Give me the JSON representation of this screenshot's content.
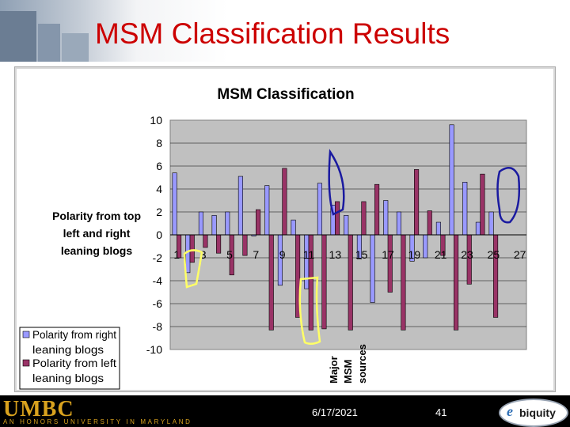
{
  "slide": {
    "title": "MSM Classification Results",
    "date": "6/17/2021",
    "page_number": "41",
    "logo_umbc": "UMBC",
    "logo_umbc_sub": "AN HONORS UNIVERSITY IN MARYLAND",
    "logo_right_mark": "e",
    "logo_right_text": "biquity"
  },
  "chart_data": {
    "type": "bar",
    "title": "MSM Classification",
    "ylabel": "Polarity from top left and right leaning blogs",
    "ylabel_lines": [
      "Polarity from top",
      "left and right",
      "leaning blogs"
    ],
    "xlabel": "",
    "ylim": [
      -10,
      10
    ],
    "yticks": [
      10,
      8,
      6,
      4,
      2,
      0,
      -2,
      -4,
      -6,
      -8,
      -10
    ],
    "xtick_labels": [
      "1",
      "3",
      "5",
      "7",
      "9",
      "11",
      "13",
      "15",
      "17",
      "19",
      "21",
      "23",
      "25",
      "27"
    ],
    "categories": [
      "1",
      "2",
      "3",
      "4",
      "5",
      "6",
      "7",
      "8",
      "9",
      "10",
      "11",
      "12",
      "13",
      "14",
      "15",
      "16",
      "17",
      "18",
      "19",
      "20",
      "21",
      "22",
      "23",
      "24",
      "25",
      "26",
      "27"
    ],
    "series": [
      {
        "name": "Polarity from right leaning blogs",
        "legend_lines": [
          "Polarity from right",
          "leaning blogs"
        ],
        "color": "#9999ff",
        "values": [
          5.4,
          -3.3,
          2.0,
          1.7,
          2.0,
          5.1,
          -0.1,
          4.3,
          -4.4,
          1.3,
          -4.7,
          4.5,
          2.6,
          1.7,
          -2.1,
          -5.9,
          3.0,
          2.0,
          -2.3,
          -2.0,
          1.1,
          9.6,
          4.6,
          1.1,
          2.0,
          0,
          0
        ]
      },
      {
        "name": "Polarity from left leaning blogs",
        "legend_lines": [
          "Polarity from left",
          "leaning blogs"
        ],
        "color": "#993366",
        "values": [
          -2.0,
          -2.4,
          -1.1,
          -1.6,
          -3.5,
          -1.8,
          2.2,
          -8.3,
          5.8,
          -7.2,
          -8.3,
          -8.2,
          2.9,
          -8.3,
          2.9,
          4.4,
          -5.0,
          -8.3,
          5.7,
          2.1,
          -1.8,
          -8.3,
          -4.3,
          5.3,
          -7.2,
          0,
          0
        ]
      }
    ],
    "annotation_text": [
      "Major",
      "MSM",
      "sources"
    ],
    "grid": true,
    "legend_position": "bottom-left",
    "highlight_colors": [
      "#ffff66",
      "#1a1aa0"
    ]
  }
}
